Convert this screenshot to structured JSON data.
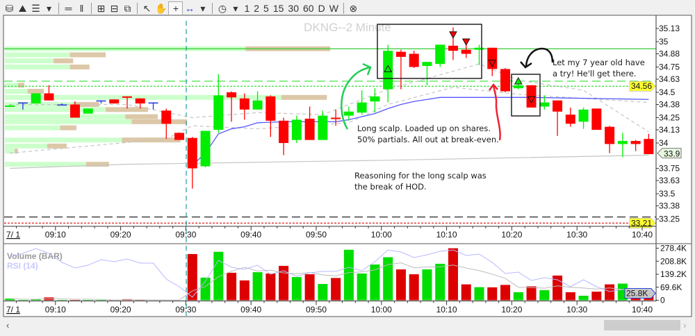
{
  "toolbar": {
    "items": [
      {
        "icon": "candles-icon",
        "glyph": "⛁"
      },
      {
        "icon": "line-chart-icon",
        "glyph": "⛰"
      },
      {
        "icon": "indicators-icon",
        "glyph": "☰"
      },
      {
        "icon": "dropdown-icon",
        "glyph": "▾"
      },
      {
        "icon": "horizontal-lines-icon",
        "glyph": "═"
      },
      {
        "icon": "vertical-lines-icon",
        "glyph": "‖"
      },
      {
        "icon": "zoom-in-icon",
        "glyph": "⊞"
      },
      {
        "icon": "zoom-out-icon",
        "glyph": "⊟"
      },
      {
        "icon": "zoom-fit-icon",
        "glyph": "⧉"
      },
      {
        "icon": "pointer-icon",
        "glyph": "↖"
      },
      {
        "icon": "hand-icon",
        "glyph": "✋"
      },
      {
        "icon": "crosshair-icon",
        "glyph": "+",
        "selected": true
      },
      {
        "icon": "measure-icon",
        "glyph": "↔",
        "color": "#2233dd"
      },
      {
        "icon": "dropdown-icon",
        "glyph": "▾"
      },
      {
        "icon": "clock-icon",
        "glyph": "◷"
      },
      {
        "icon": "dropdown-icon",
        "glyph": "▾"
      }
    ],
    "intervals": [
      "1",
      "2",
      "5",
      "15",
      "30",
      "60",
      "D",
      "W"
    ],
    "close_icon": "⊗"
  },
  "chart_title": "DKNG--2 Minute",
  "date_label": "7/ 1",
  "volume_label": "Volume (BAR)",
  "rsi_label": "RSI (14)",
  "colors": {
    "up": "#00ee00",
    "down": "#ff0000",
    "doji": "#2233dd",
    "vol_up": "#00dd00",
    "vol_down": "#dd0000",
    "vwap": "#5555ff",
    "rsi": "#b8b8ff",
    "profile_buy": "#ccffcc",
    "profile_sell": "#dcc8a8",
    "highlight": "#ffff33"
  },
  "annotations": {
    "scalp_line1": "Long scalp. Loaded up on shares.",
    "scalp_line2": "50% partials. All out at break-even.",
    "kid_line1": "Let my 7 year old have",
    "kid_line2": "a try! He'll get there.",
    "reason_line1": "Reasoning for the long scalp was",
    "reason_line2": "the break of HOD."
  },
  "chart_data": {
    "type": "candlestick",
    "title": "DKNG--2 Minute",
    "interval_minutes": 2,
    "price_ticks": [
      "35.13",
      "35",
      "34.88",
      "34.75",
      "34.63",
      "34.5",
      "34.38",
      "34.25",
      "34.13",
      "34",
      "33.75",
      "33.63",
      "33.5",
      "33.38",
      "33.25"
    ],
    "price_range": [
      33.2,
      35.25
    ],
    "time_ticks": [
      "09:10",
      "09:20",
      "09:30",
      "09:40",
      "09:50",
      "10:00",
      "10:10",
      "10:20",
      "10:30",
      "10:40"
    ],
    "session_open": "09:30",
    "volume_ticks": [
      "278.4K",
      "208.8K",
      "139.2K",
      "69.6K",
      "0"
    ],
    "volume_range_k": [
      0,
      278.4
    ],
    "last_price": "33.9",
    "last_volume": "25.8K",
    "price_markers": [
      {
        "label": "34.56",
        "price": 34.56,
        "style": "highlight"
      },
      {
        "label": "33.21",
        "price": 33.21,
        "style": "highlight"
      }
    ],
    "levels": [
      {
        "price": 34.93,
        "style": "solid",
        "color": "#33cc33"
      },
      {
        "price": 34.61,
        "style": "dashed",
        "color": "#33dd33"
      },
      {
        "price": 34.56,
        "style": "dotted",
        "color": "#33dd33"
      },
      {
        "price": 33.27,
        "style": "dashed",
        "color": "#111111"
      },
      {
        "price": 33.21,
        "style": "dotted",
        "color": "#dd2222"
      }
    ],
    "candles": [
      {
        "t": "09:02",
        "o": 34.36,
        "h": 34.38,
        "l": 34.36,
        "c": 34.37,
        "v": 9
      },
      {
        "t": "09:04",
        "o": 34.4,
        "h": 34.4,
        "l": 34.33,
        "c": 34.4,
        "v": 2
      },
      {
        "t": "09:06",
        "o": 34.39,
        "h": 34.49,
        "l": 34.39,
        "c": 34.49,
        "v": 6
      },
      {
        "t": "09:08",
        "o": 34.49,
        "h": 34.57,
        "l": 34.42,
        "c": 34.42,
        "v": 15
      },
      {
        "t": "09:10",
        "o": 34.38,
        "h": 34.39,
        "l": 34.38,
        "c": 34.38,
        "v": 2
      },
      {
        "t": "09:12",
        "o": 34.38,
        "h": 34.41,
        "l": 34.25,
        "c": 34.25,
        "v": 2
      },
      {
        "t": "09:14",
        "o": 34.29,
        "h": 34.34,
        "l": 34.29,
        "c": 34.34,
        "v": 2
      },
      {
        "t": "09:16",
        "o": 34.42,
        "h": 34.42,
        "l": 34.39,
        "c": 34.42,
        "v": 2
      },
      {
        "t": "09:18",
        "o": 34.43,
        "h": 34.43,
        "l": 34.39,
        "c": 34.39,
        "v": 2
      },
      {
        "t": "09:20",
        "o": 34.46,
        "h": 34.46,
        "l": 34.34,
        "c": 34.45,
        "v": 6
      },
      {
        "t": "09:22",
        "o": 34.44,
        "h": 34.44,
        "l": 34.34,
        "c": 34.39,
        "v": 2
      },
      {
        "t": "09:24",
        "o": 34.4,
        "h": 34.4,
        "l": 34.33,
        "c": 34.4,
        "v": 0
      },
      {
        "t": "09:26",
        "o": 34.32,
        "h": 34.34,
        "l": 34.04,
        "c": 34.19,
        "v": 0
      },
      {
        "t": "09:28",
        "o": 34.1,
        "h": 34.1,
        "l": 34.03,
        "c": 34.03,
        "v": 0
      },
      {
        "t": "09:30",
        "o": 34.05,
        "h": 34.06,
        "l": 33.55,
        "c": 33.75,
        "v": 247
      },
      {
        "t": "09:32",
        "o": 33.77,
        "h": 34.12,
        "l": 33.76,
        "c": 34.12,
        "v": 121
      },
      {
        "t": "09:34",
        "o": 34.13,
        "h": 34.68,
        "l": 34.1,
        "c": 34.47,
        "v": 259
      },
      {
        "t": "09:36",
        "o": 34.5,
        "h": 34.51,
        "l": 34.21,
        "c": 34.45,
        "v": 147
      },
      {
        "t": "09:38",
        "o": 34.44,
        "h": 34.49,
        "l": 34.23,
        "c": 34.33,
        "v": 106
      },
      {
        "t": "09:40",
        "o": 34.33,
        "h": 34.51,
        "l": 34.33,
        "c": 34.42,
        "v": 150
      },
      {
        "t": "09:42",
        "o": 34.46,
        "h": 34.47,
        "l": 34.06,
        "c": 34.22,
        "v": 143
      },
      {
        "t": "09:44",
        "o": 34.22,
        "h": 34.25,
        "l": 33.88,
        "c": 34.0,
        "v": 184
      },
      {
        "t": "09:46",
        "o": 34.03,
        "h": 34.27,
        "l": 34.0,
        "c": 34.23,
        "v": 124
      },
      {
        "t": "09:48",
        "o": 34.24,
        "h": 34.36,
        "l": 34.03,
        "c": 34.03,
        "v": 139
      },
      {
        "t": "09:50",
        "o": 34.03,
        "h": 34.32,
        "l": 34.03,
        "c": 34.27,
        "v": 87
      },
      {
        "t": "09:52",
        "o": 34.25,
        "h": 34.33,
        "l": 34.17,
        "c": 34.24,
        "v": 119
      },
      {
        "t": "09:54",
        "o": 34.27,
        "h": 34.36,
        "l": 34.22,
        "c": 34.31,
        "v": 270
      },
      {
        "t": "09:56",
        "o": 34.3,
        "h": 34.52,
        "l": 34.28,
        "c": 34.4,
        "v": 143
      },
      {
        "t": "09:58",
        "o": 34.41,
        "h": 34.54,
        "l": 34.3,
        "c": 34.46,
        "v": 191
      },
      {
        "t": "10:00",
        "o": 34.53,
        "h": 34.97,
        "l": 34.4,
        "c": 34.91,
        "v": 230
      },
      {
        "t": "10:02",
        "o": 34.9,
        "h": 34.92,
        "l": 34.53,
        "c": 34.85,
        "v": 165
      },
      {
        "t": "10:04",
        "o": 34.88,
        "h": 34.91,
        "l": 34.74,
        "c": 34.75,
        "v": 139
      },
      {
        "t": "10:06",
        "o": 34.76,
        "h": 34.8,
        "l": 34.57,
        "c": 34.8,
        "v": 165
      },
      {
        "t": "10:08",
        "o": 34.78,
        "h": 34.97,
        "l": 34.75,
        "c": 34.97,
        "v": 195
      },
      {
        "t": "10:10",
        "o": 34.96,
        "h": 35.14,
        "l": 34.82,
        "c": 34.91,
        "v": 278
      },
      {
        "t": "10:12",
        "o": 34.92,
        "h": 34.99,
        "l": 34.84,
        "c": 34.88,
        "v": 85
      },
      {
        "t": "10:14",
        "o": 34.92,
        "h": 34.97,
        "l": 34.77,
        "c": 34.94,
        "v": 70
      },
      {
        "t": "10:16",
        "o": 34.94,
        "h": 34.94,
        "l": 34.66,
        "c": 34.73,
        "v": 69
      },
      {
        "t": "10:18",
        "o": 34.73,
        "h": 34.74,
        "l": 34.5,
        "c": 34.51,
        "v": 82
      },
      {
        "t": "10:20",
        "o": 34.54,
        "h": 34.6,
        "l": 34.53,
        "c": 34.57,
        "v": 43
      },
      {
        "t": "10:22",
        "o": 34.57,
        "h": 34.57,
        "l": 34.35,
        "c": 34.35,
        "v": 74
      },
      {
        "t": "10:24",
        "o": 34.36,
        "h": 34.47,
        "l": 34.33,
        "c": 34.4,
        "v": 54
      },
      {
        "t": "10:26",
        "o": 34.42,
        "h": 34.42,
        "l": 34.07,
        "c": 34.31,
        "v": 132
      },
      {
        "t": "10:28",
        "o": 34.28,
        "h": 34.35,
        "l": 34.16,
        "c": 34.19,
        "v": 43
      },
      {
        "t": "10:30",
        "o": 34.21,
        "h": 34.35,
        "l": 34.14,
        "c": 34.33,
        "v": 24
      },
      {
        "t": "10:32",
        "o": 34.34,
        "h": 34.34,
        "l": 34.13,
        "c": 34.13,
        "v": 46
      },
      {
        "t": "10:34",
        "o": 34.16,
        "h": 34.17,
        "l": 33.9,
        "c": 33.99,
        "v": 85
      },
      {
        "t": "10:36",
        "o": 33.99,
        "h": 34.1,
        "l": 33.86,
        "c": 34.02,
        "v": 89
      },
      {
        "t": "10:38",
        "o": 34.02,
        "h": 34.03,
        "l": 33.92,
        "c": 33.99,
        "v": 58
      },
      {
        "t": "10:40",
        "o": 34.04,
        "h": 34.09,
        "l": 33.89,
        "c": 33.89,
        "v": 25.8
      }
    ],
    "rsi": [
      70,
      75,
      82,
      75,
      62,
      54,
      58,
      66,
      63,
      67,
      61,
      61,
      38,
      27,
      12,
      35,
      65,
      55,
      52,
      58,
      45,
      50,
      42,
      47,
      49,
      49,
      55,
      50,
      63,
      80,
      77,
      69,
      73,
      78,
      80,
      72,
      74,
      62,
      46,
      48,
      36,
      40,
      37,
      27,
      37,
      27,
      20,
      23,
      23,
      17
    ],
    "vwap_line": [
      [
        "09:30",
        33.78
      ],
      [
        "09:32",
        33.9
      ],
      [
        "09:34",
        34.09
      ],
      [
        "09:36",
        34.14
      ],
      [
        "09:38",
        34.16
      ],
      [
        "09:40",
        34.2
      ],
      [
        "09:44",
        34.21
      ],
      [
        "09:52",
        34.21
      ],
      [
        "09:54",
        34.23
      ],
      [
        "09:56",
        34.26
      ],
      [
        "09:58",
        34.29
      ],
      [
        "10:00",
        34.34
      ],
      [
        "10:02",
        34.38
      ],
      [
        "10:04",
        34.41
      ],
      [
        "10:06",
        34.43
      ],
      [
        "10:08",
        34.45
      ],
      [
        "10:22",
        34.45
      ],
      [
        "10:40",
        34.43
      ]
    ],
    "ma_lines": [
      {
        "style": "solid",
        "points": [
          [
            "09:02",
            33.75
          ],
          [
            "09:20",
            33.79
          ],
          [
            "09:40",
            33.81
          ],
          [
            "10:00",
            33.83
          ],
          [
            "10:40",
            33.88
          ]
        ]
      },
      {
        "style": "dashed",
        "points": [
          [
            "09:02",
            34.38
          ],
          [
            "09:20",
            34.38
          ],
          [
            "09:30",
            34.25
          ],
          [
            "09:40",
            34.3
          ],
          [
            "09:50",
            34.28
          ],
          [
            "10:00",
            34.53
          ],
          [
            "10:14",
            34.78
          ],
          [
            "10:20",
            34.62
          ],
          [
            "10:30",
            34.52
          ],
          [
            "10:40",
            34.11
          ]
        ]
      },
      {
        "style": "dashed",
        "points": [
          [
            "09:02",
            33.9
          ],
          [
            "09:26",
            34.04
          ],
          [
            "09:30",
            34.17
          ],
          [
            "09:40",
            34.14
          ],
          [
            "09:54",
            34.2
          ],
          [
            "10:00",
            34.38
          ],
          [
            "10:10",
            34.55
          ],
          [
            "10:20",
            34.48
          ],
          [
            "10:40",
            34.4
          ]
        ]
      }
    ],
    "volume_profile": [
      {
        "price": 34.93,
        "buy": 74,
        "sell": 26
      },
      {
        "price": 34.87,
        "buy": 20,
        "sell": 11
      },
      {
        "price": 34.81,
        "buy": 15,
        "sell": 6
      },
      {
        "price": 34.75,
        "buy": 20,
        "sell": 6
      },
      {
        "price": 34.57,
        "buy": 4,
        "sell": 2
      },
      {
        "price": 34.51,
        "buy": 7,
        "sell": 5
      },
      {
        "price": 34.45,
        "buy": 85,
        "sell": 14
      },
      {
        "price": 34.38,
        "buy": 21,
        "sell": 8
      },
      {
        "price": 34.33,
        "buy": 31,
        "sell": 13
      },
      {
        "price": 34.26,
        "buy": 37,
        "sell": 10
      },
      {
        "price": 34.21,
        "buy": 39,
        "sell": 17
      },
      {
        "price": 34.15,
        "buy": 17,
        "sell": 5
      },
      {
        "price": 34.03,
        "buy": 36,
        "sell": 18
      },
      {
        "price": 33.97,
        "buy": 13,
        "sell": 6
      },
      {
        "price": 33.92,
        "buy": 3,
        "sell": 1
      },
      {
        "price": 33.79,
        "buy": 25,
        "sell": 7
      }
    ],
    "trade_markers": [
      {
        "t": "10:00",
        "price": 34.73,
        "type": "buy",
        "fill": "none"
      },
      {
        "t": "10:10",
        "price": 35.07,
        "type": "sell",
        "fill": "#ff0000"
      },
      {
        "t": "10:12",
        "price": 35.0,
        "type": "sell",
        "fill": "#ff0000"
      },
      {
        "t": "10:16",
        "price": 34.79,
        "type": "sell",
        "fill": "none"
      },
      {
        "t": "10:20",
        "price": 34.61,
        "type": "buy",
        "fill": "#00ee00"
      },
      {
        "t": "10:22",
        "price": 34.43,
        "type": "sell",
        "fill": "none"
      }
    ]
  }
}
